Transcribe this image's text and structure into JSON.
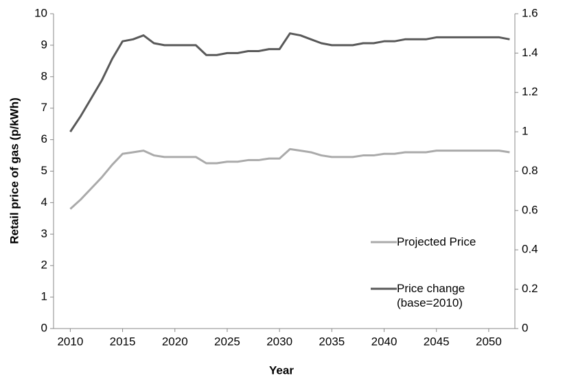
{
  "chart_data": {
    "type": "line",
    "x": [
      2010,
      2011,
      2012,
      2013,
      2014,
      2015,
      2016,
      2017,
      2018,
      2019,
      2020,
      2021,
      2022,
      2023,
      2024,
      2025,
      2026,
      2027,
      2028,
      2029,
      2030,
      2031,
      2032,
      2033,
      2034,
      2035,
      2036,
      2037,
      2038,
      2039,
      2040,
      2041,
      2042,
      2043,
      2044,
      2045,
      2046,
      2047,
      2048,
      2049,
      2050,
      2051,
      2052
    ],
    "series": [
      {
        "name": "Projected Price",
        "color": "#aaaaaa",
        "axis": "y",
        "values": [
          3.8,
          4.1,
          4.45,
          4.8,
          5.2,
          5.55,
          5.6,
          5.65,
          5.5,
          5.45,
          5.45,
          5.45,
          5.45,
          5.25,
          5.25,
          5.3,
          5.3,
          5.35,
          5.35,
          5.4,
          5.4,
          5.7,
          5.65,
          5.6,
          5.5,
          5.45,
          5.45,
          5.45,
          5.5,
          5.5,
          5.55,
          5.55,
          5.6,
          5.6,
          5.6,
          5.65,
          5.65,
          5.65,
          5.65,
          5.65,
          5.65,
          5.65,
          5.6
        ]
      },
      {
        "name": "Price change (base=2010)",
        "color": "#595959",
        "axis": "y2",
        "values": [
          1.0,
          1.08,
          1.17,
          1.26,
          1.37,
          1.46,
          1.47,
          1.49,
          1.45,
          1.44,
          1.44,
          1.44,
          1.44,
          1.39,
          1.39,
          1.4,
          1.4,
          1.41,
          1.41,
          1.42,
          1.42,
          1.5,
          1.49,
          1.47,
          1.45,
          1.44,
          1.44,
          1.44,
          1.45,
          1.45,
          1.46,
          1.46,
          1.47,
          1.47,
          1.47,
          1.48,
          1.48,
          1.48,
          1.48,
          1.48,
          1.48,
          1.48,
          1.47
        ]
      }
    ],
    "xlabel": "Year",
    "ylabel": "Retail price of gas (p/kWh)",
    "xlim": [
      2008.4,
      2052.5
    ],
    "xticks": [
      2010,
      2015,
      2020,
      2025,
      2030,
      2035,
      2040,
      2045,
      2050
    ],
    "ylim": [
      0,
      10
    ],
    "yticks": [
      0,
      1,
      2,
      3,
      4,
      5,
      6,
      7,
      8,
      9,
      10
    ],
    "y2lim": [
      0,
      1.6
    ],
    "y2ticks": [
      0,
      0.2,
      0.4,
      0.6,
      0.8,
      1,
      1.2,
      1.4,
      1.6
    ],
    "grid": false,
    "legend": "lower right"
  }
}
